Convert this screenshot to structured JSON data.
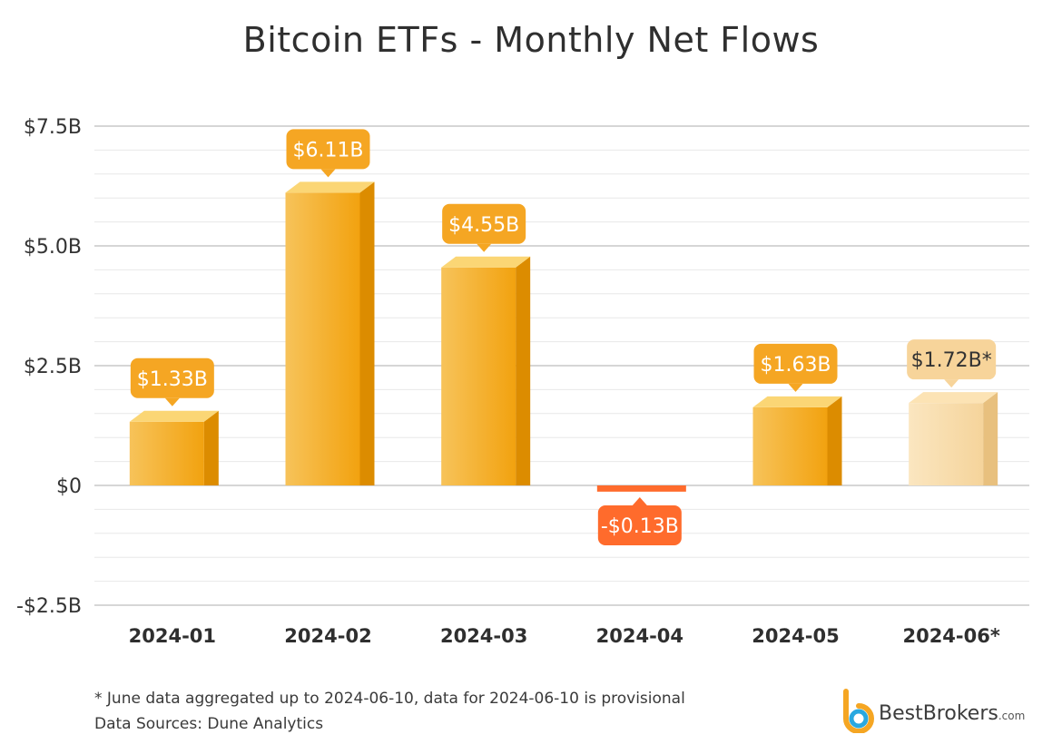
{
  "title": "Bitcoin ETFs - Monthly Net Flows",
  "footnote": "* June data aggregated up to 2024-06-10, data for 2024-06-10 is provisional",
  "source": "Data Sources: Dune Analytics",
  "brand": {
    "name": "BestBrokers",
    "suffix": ".com",
    "icon": "bestbrokers-logo-icon"
  },
  "colors": {
    "positive": "#f5a623",
    "positive_dark": "#dc8c00",
    "positive_light": "#f7c35a",
    "negative": "#ff6b2c",
    "provisional": "#f7d49a",
    "provisional_dark": "#e8c07e",
    "grid": "#cccccc",
    "label_text_dark": "#333333"
  },
  "chart_data": {
    "type": "bar",
    "title": "Bitcoin ETFs - Monthly Net Flows",
    "categories": [
      "2024-01",
      "2024-02",
      "2024-03",
      "2024-04",
      "2024-05",
      "2024-06*"
    ],
    "values": [
      1.33,
      6.11,
      4.55,
      -0.13,
      1.63,
      1.72
    ],
    "data_labels": [
      "$1.33B",
      "$6.11B",
      "$4.55B",
      "-$0.13B",
      "$1.63B",
      "$1.72B*"
    ],
    "provisional": [
      false,
      false,
      false,
      false,
      false,
      true
    ],
    "ylim": [
      -2.5,
      7.5
    ],
    "yticks": [
      -2.5,
      0,
      2.5,
      5.0,
      7.5
    ],
    "ytick_labels": [
      "-$2.5B",
      "$0",
      "$2.5B",
      "$5.0B",
      "$7.5B"
    ],
    "xlabel": "",
    "ylabel": "",
    "grid": true,
    "legend": "none"
  }
}
